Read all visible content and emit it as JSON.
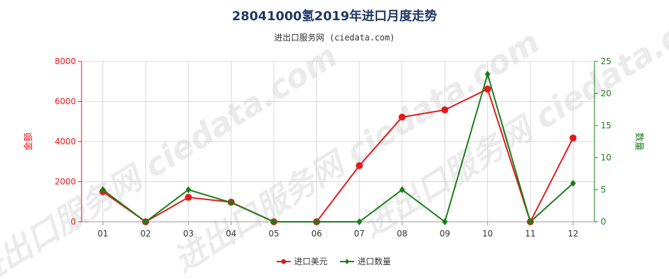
{
  "colors": {
    "usd": "#e31a1c",
    "qty": "#1a7d1a",
    "title": "#1f3864",
    "grid": "#d8d8d8",
    "axis": "#999999"
  },
  "chart_data": {
    "type": "line",
    "title": "28041000氢2019年进口月度走势",
    "subtitle": "进出口服务网 (ciedata.com)",
    "watermark": "进出口服务网 ciedata.com",
    "categories": [
      "01",
      "02",
      "03",
      "04",
      "05",
      "06",
      "07",
      "08",
      "09",
      "10",
      "11",
      "12"
    ],
    "y_left": {
      "label": "金额",
      "range": [
        0,
        8000
      ],
      "ticks": [
        "0",
        "2000",
        "4000",
        "6000",
        "8000"
      ],
      "tick_values": [
        0,
        2000,
        4000,
        6000,
        8000
      ]
    },
    "y_right": {
      "label": "数量",
      "range": [
        0,
        25
      ],
      "ticks": [
        "0",
        "5",
        "10",
        "15",
        "20",
        "25"
      ],
      "tick_values": [
        0,
        5,
        10,
        15,
        20,
        25
      ]
    },
    "grid": true,
    "legend_position": "bottom",
    "series": [
      {
        "name": "进口美元",
        "axis": "left",
        "color": "#e31a1c",
        "values": [
          1500,
          0,
          1220,
          980,
          0,
          0,
          2800,
          5220,
          5580,
          6620,
          0,
          4180
        ]
      },
      {
        "name": "进口数量",
        "axis": "right",
        "color": "#1a7d1a",
        "values": [
          5,
          0,
          5,
          3,
          0,
          0,
          0,
          5,
          0,
          23,
          0,
          6
        ]
      }
    ]
  }
}
